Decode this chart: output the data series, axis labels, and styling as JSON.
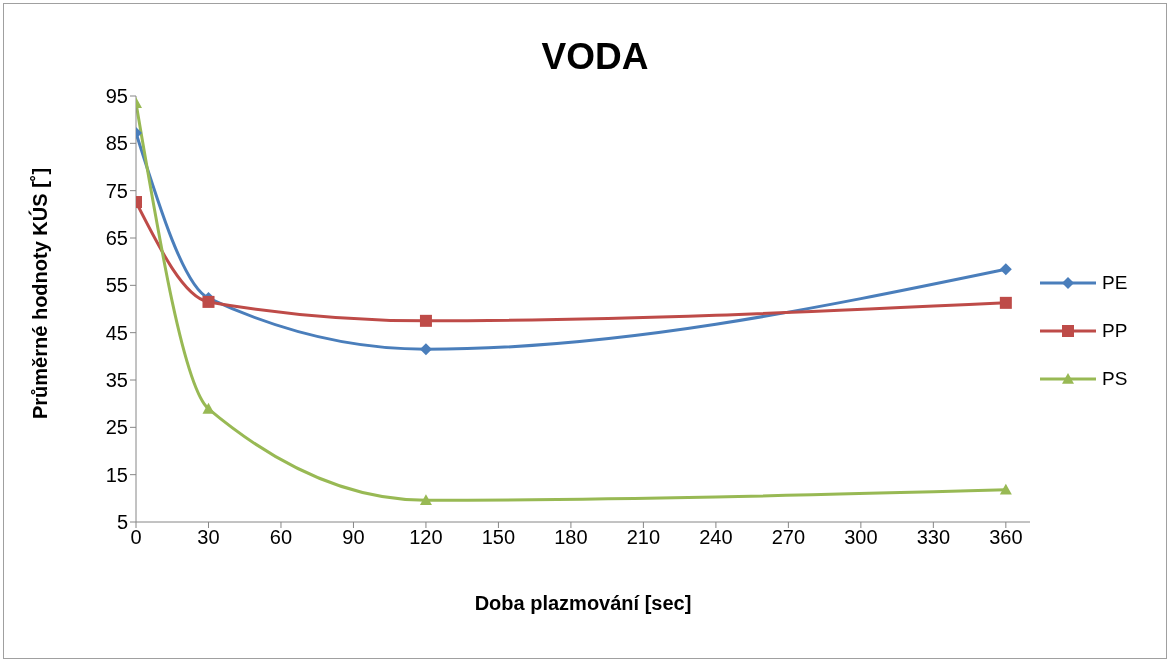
{
  "chart_data": {
    "type": "line",
    "title": "VODA",
    "xlabel": "Doba plazmování [sec]",
    "ylabel": "Průměrné hodnoty KÚS [˚]",
    "x": [
      0,
      30,
      120,
      360
    ],
    "series": [
      {
        "name": "PE",
        "color": "#4a7ebb",
        "marker": "diamond",
        "values": [
          87.2,
          52.3,
          41.5,
          58.4
        ]
      },
      {
        "name": "PP",
        "color": "#be4b48",
        "marker": "square",
        "values": [
          72.6,
          51.5,
          47.5,
          51.3
        ]
      },
      {
        "name": "PS",
        "color": "#98b954",
        "marker": "triangle",
        "values": [
          93.5,
          28.9,
          9.6,
          11.8
        ]
      }
    ],
    "xlim": [
      0,
      370
    ],
    "xticks": [
      0,
      30,
      60,
      90,
      120,
      150,
      180,
      210,
      240,
      270,
      300,
      330,
      360
    ],
    "ylim": [
      5,
      95
    ],
    "yticks": [
      5,
      15,
      25,
      35,
      45,
      55,
      65,
      75,
      85,
      95
    ],
    "grid": false,
    "legend": "right",
    "line_style": "solid"
  }
}
